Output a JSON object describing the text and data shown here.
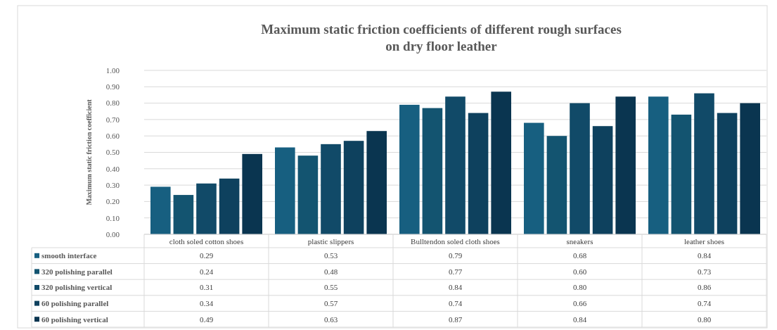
{
  "chart_data": {
    "type": "bar",
    "title": "Maximum static friction coefficients of different rough surfaces\non dry floor leather",
    "ylabel": "Maximum static friction coefficient",
    "categories": [
      "cloth soled cotton shoes",
      "plastic slippers",
      "Bulltendon soled cloth shoes",
      "sneakers",
      "leather shoes"
    ],
    "series": [
      {
        "name": "smooth interface",
        "color": "#175f80",
        "values": [
          0.29,
          0.53,
          0.79,
          0.68,
          0.84
        ],
        "value_labels": [
          "0.29",
          "0.53",
          "0.79",
          "0.68",
          "0.84"
        ]
      },
      {
        "name": "320 polishing parallel",
        "color": "#135470",
        "values": [
          0.24,
          0.48,
          0.77,
          0.6,
          0.73
        ],
        "value_labels": [
          "0.24",
          "0.48",
          "0.77",
          "0.60",
          "0.73"
        ]
      },
      {
        "name": "320 polishing vertical",
        "color": "#114a68",
        "values": [
          0.31,
          0.55,
          0.84,
          0.8,
          0.86
        ],
        "value_labels": [
          "0.31",
          "0.55",
          "0.84",
          "0.80",
          "0.86"
        ]
      },
      {
        "name": "60 polishing parallel",
        "color": "#0e415e",
        "values": [
          0.34,
          0.57,
          0.74,
          0.66,
          0.74
        ],
        "value_labels": [
          "0.34",
          "0.57",
          "0.74",
          "0.66",
          "0.74"
        ]
      },
      {
        "name": "60 polishing vertical",
        "color": "#0a3550",
        "values": [
          0.49,
          0.63,
          0.87,
          0.84,
          0.8
        ],
        "value_labels": [
          "0.49",
          "0.63",
          "0.87",
          "0.84",
          "0.80"
        ]
      }
    ],
    "ylim": [
      0,
      1
    ],
    "yticks": [
      {
        "value": 0,
        "label": "0.00"
      },
      {
        "value": 0.1,
        "label": "0.10"
      },
      {
        "value": 0.2,
        "label": "0.20"
      },
      {
        "value": 0.3,
        "label": "0.30"
      },
      {
        "value": 0.4,
        "label": "0.40"
      },
      {
        "value": 0.5,
        "label": "0.50"
      },
      {
        "value": 0.6,
        "label": "0.60"
      },
      {
        "value": 0.7,
        "label": "0.70"
      },
      {
        "value": 0.8,
        "label": "0.80"
      },
      {
        "value": 0.9,
        "label": "0.90"
      },
      {
        "value": 1,
        "label": "1.00"
      }
    ],
    "grid": "y",
    "legend": "bottom"
  }
}
